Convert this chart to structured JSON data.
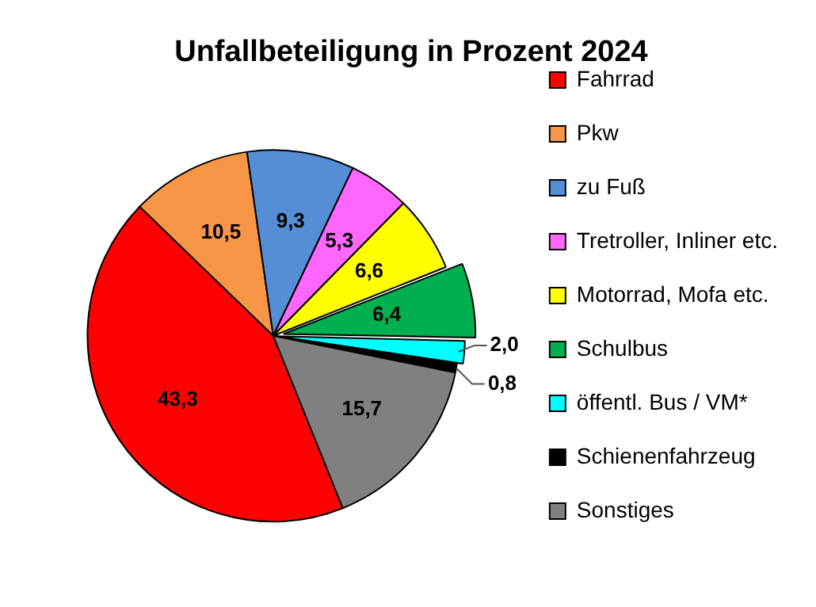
{
  "chart_data": {
    "type": "pie",
    "title": "Unfallbeteiligung in Prozent 2024",
    "categories": [
      "Fahrrad",
      "Pkw",
      "zu Fuß",
      "Tretroller, Inliner etc.",
      "Motorrad, Mofa etc.",
      "Schulbus",
      "öffentl. Bus / VM*",
      "Schienenfahrzeug",
      "Sonstiges"
    ],
    "values": [
      43.3,
      10.5,
      9.3,
      5.3,
      6.6,
      6.4,
      2.0,
      0.8,
      15.7
    ],
    "colors": [
      "#ff0000",
      "#f79646",
      "#558ed5",
      "#ff66ff",
      "#ffff00",
      "#00b050",
      "#00ffff",
      "#000000",
      "#808080"
    ],
    "value_labels": [
      "43,3",
      "10,5",
      "9,3",
      "5,3",
      "6,6",
      "6,4",
      "2,0",
      "0,8",
      "15,7"
    ],
    "legend": "right"
  }
}
